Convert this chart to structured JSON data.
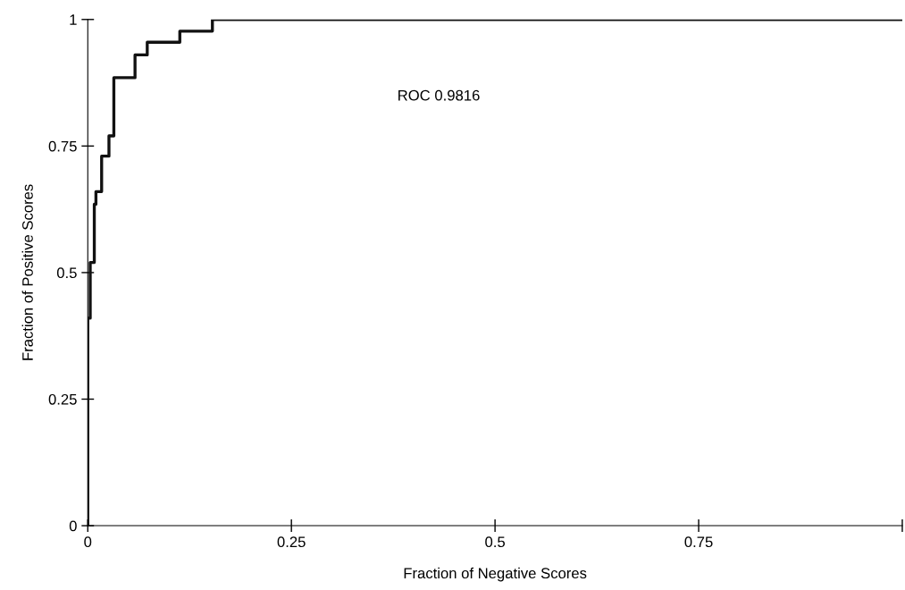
{
  "chart_data": {
    "type": "step",
    "xlabel": "Fraction of Negative Scores",
    "ylabel": "Fraction of Positive Scores",
    "annotations": [
      "ROC 0.9816"
    ],
    "series": [
      {
        "color": "#111111",
        "x": [
          0,
          0,
          0.003,
          0.008,
          0.01,
          0.017,
          0.026,
          0.032,
          0.058,
          0.073,
          0.113,
          0.153,
          1
        ],
        "values": [
          0,
          0.41,
          0.52,
          0.635,
          0.66,
          0.73,
          0.77,
          0.885,
          0.93,
          0.955,
          0.977,
          1,
          1
        ]
      }
    ],
    "xlim": [
      0,
      1
    ],
    "ylim": [
      0,
      1
    ],
    "xticks": [
      0,
      0.25,
      0.5,
      0.75,
      {
        "value": 1,
        "label": null
      }
    ],
    "yticks": [
      0,
      0.25,
      0.5,
      0.75,
      1
    ],
    "grid": false,
    "legend": false
  }
}
